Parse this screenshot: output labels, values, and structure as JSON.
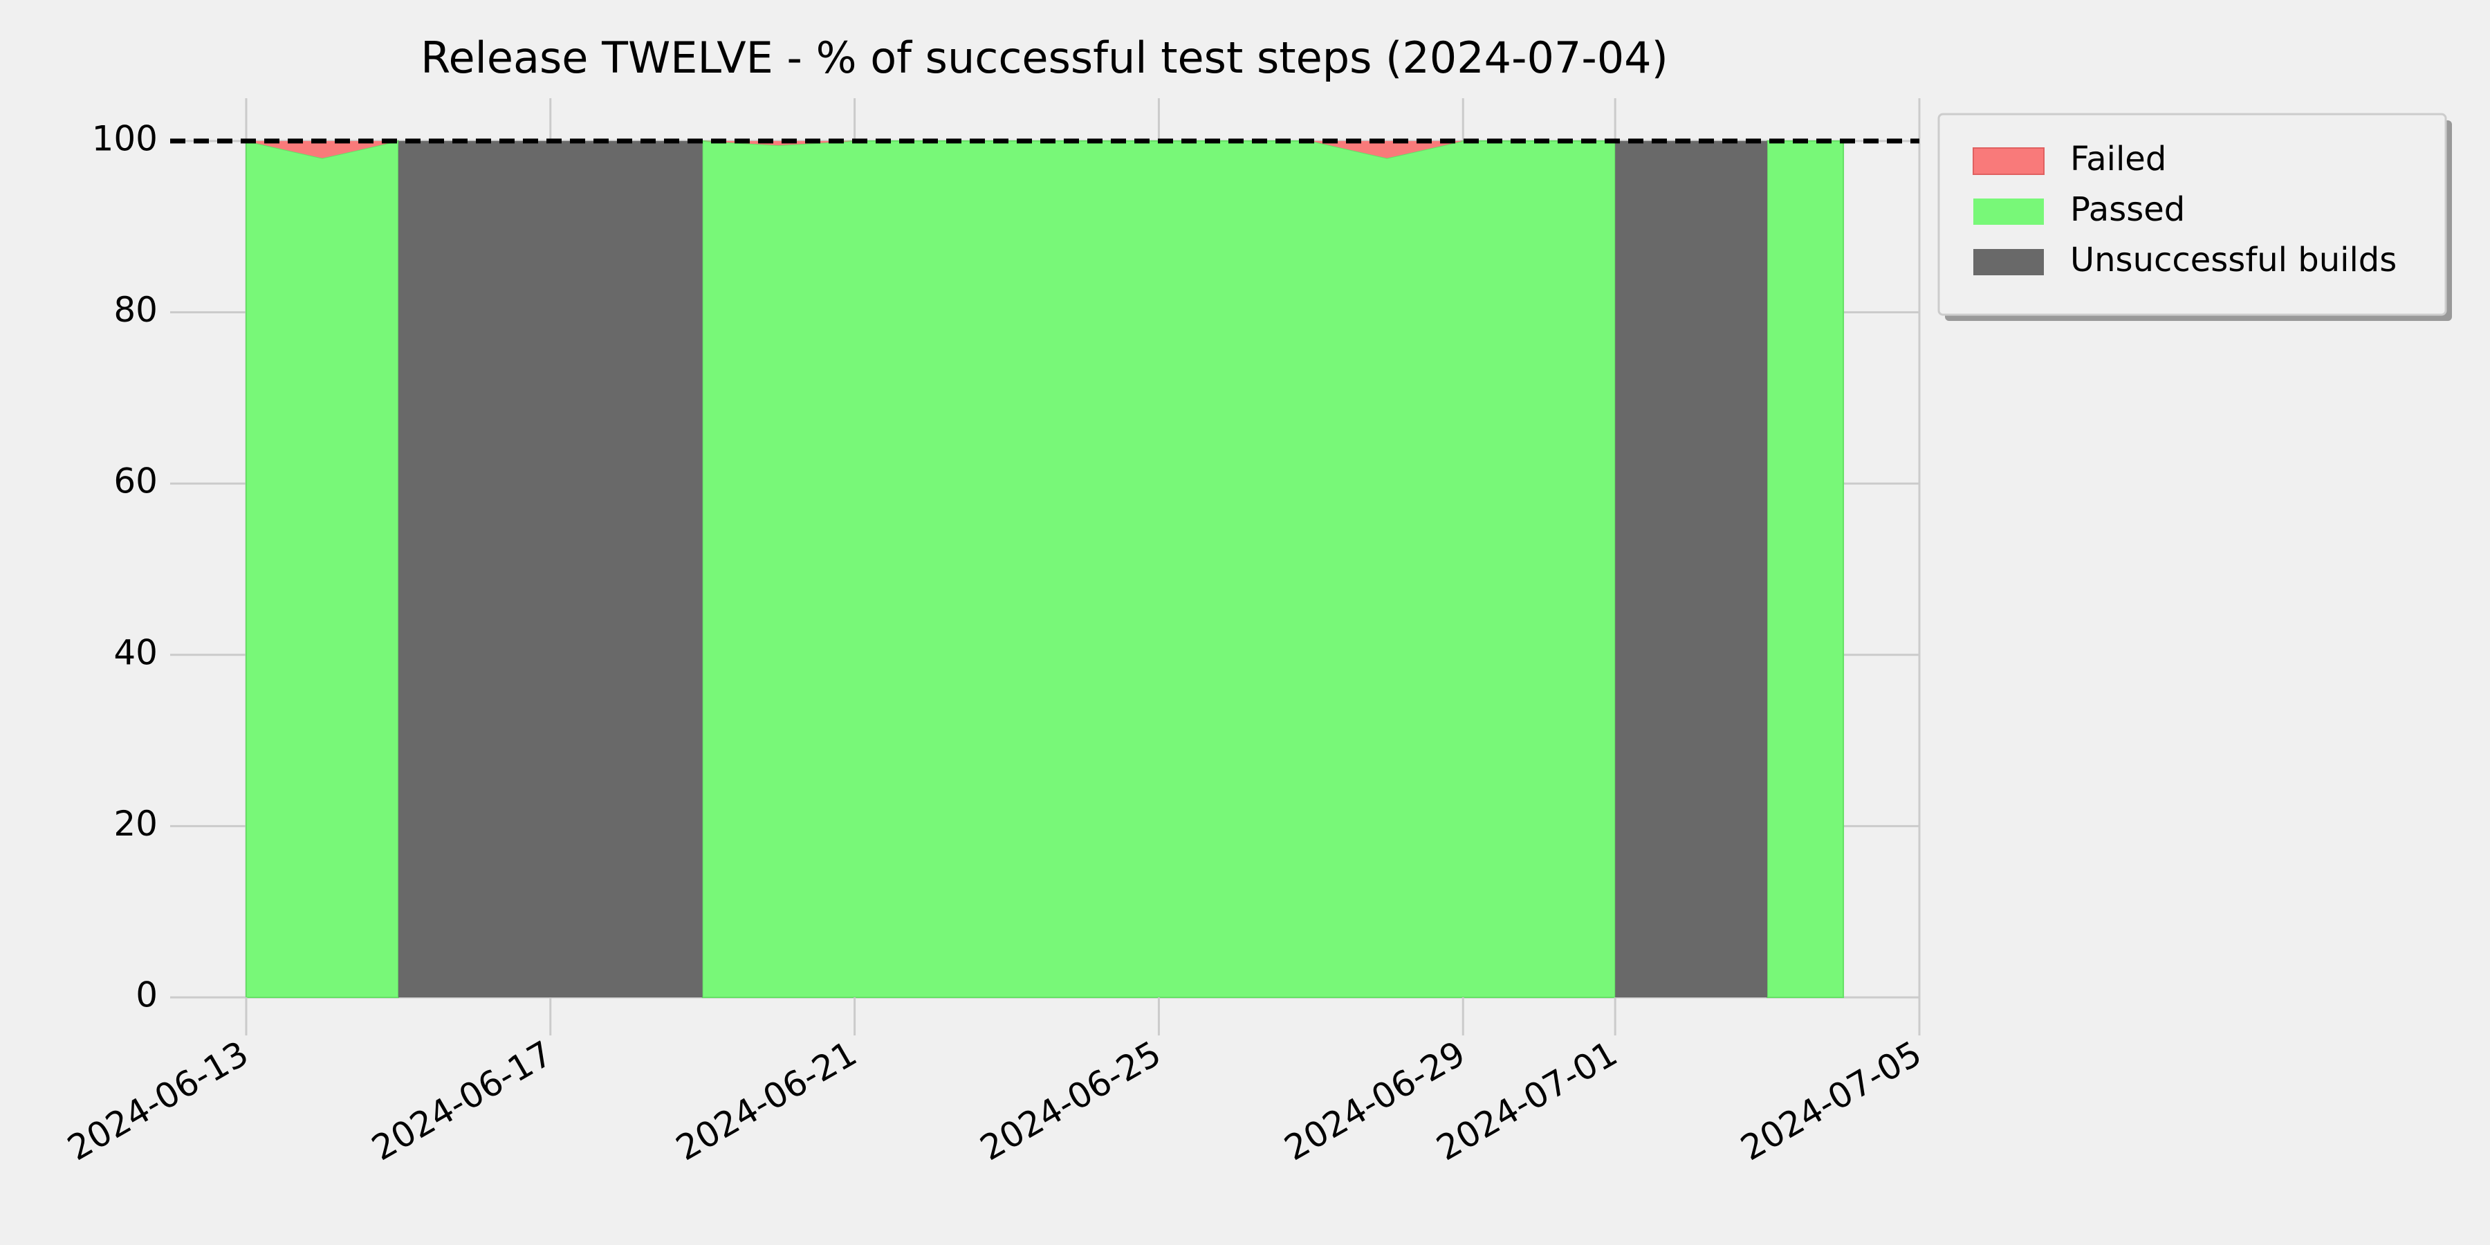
{
  "chart_data": {
    "type": "area",
    "title": "Release TWELVE - % of successful test steps (2024-07-04)",
    "x": [
      "2024-06-13",
      "2024-06-14",
      "2024-06-15",
      "2024-06-16",
      "2024-06-17",
      "2024-06-18",
      "2024-06-19",
      "2024-06-20",
      "2024-06-21",
      "2024-06-22",
      "2024-06-23",
      "2024-06-24",
      "2024-06-25",
      "2024-06-26",
      "2024-06-27",
      "2024-06-28",
      "2024-06-29",
      "2024-06-30",
      "2024-07-01",
      "2024-07-02",
      "2024-07-03",
      "2024-07-04"
    ],
    "series": [
      {
        "name": "Failed",
        "color": "#f97a7a",
        "values": [
          0,
          2,
          0,
          null,
          null,
          null,
          0,
          0.5,
          0,
          0,
          0,
          0,
          0,
          0,
          0,
          2,
          0,
          0,
          0,
          null,
          0,
          0
        ]
      },
      {
        "name": "Passed",
        "color": "#78f878",
        "values": [
          100,
          98,
          100,
          null,
          null,
          null,
          100,
          99.5,
          100,
          100,
          100,
          100,
          100,
          100,
          100,
          98,
          100,
          100,
          100,
          null,
          100,
          100
        ]
      }
    ],
    "unsuccessful": {
      "name": "Unsuccessful builds",
      "color": "#696969",
      "intervals": [
        [
          "2024-06-15",
          "2024-06-19"
        ],
        [
          "2024-07-01",
          "2024-07-03"
        ]
      ]
    },
    "threshold": 100,
    "xlim": [
      "2024-06-12",
      "2024-07-05"
    ],
    "xticks": [
      "2024-06-13",
      "2024-06-17",
      "2024-06-21",
      "2024-06-25",
      "2024-06-29",
      "2024-07-01",
      "2024-07-05"
    ],
    "ylim": [
      0,
      105
    ],
    "yticks": [
      0,
      20,
      40,
      60,
      80,
      100
    ],
    "grid": true,
    "legend": "outside-upper-right"
  }
}
